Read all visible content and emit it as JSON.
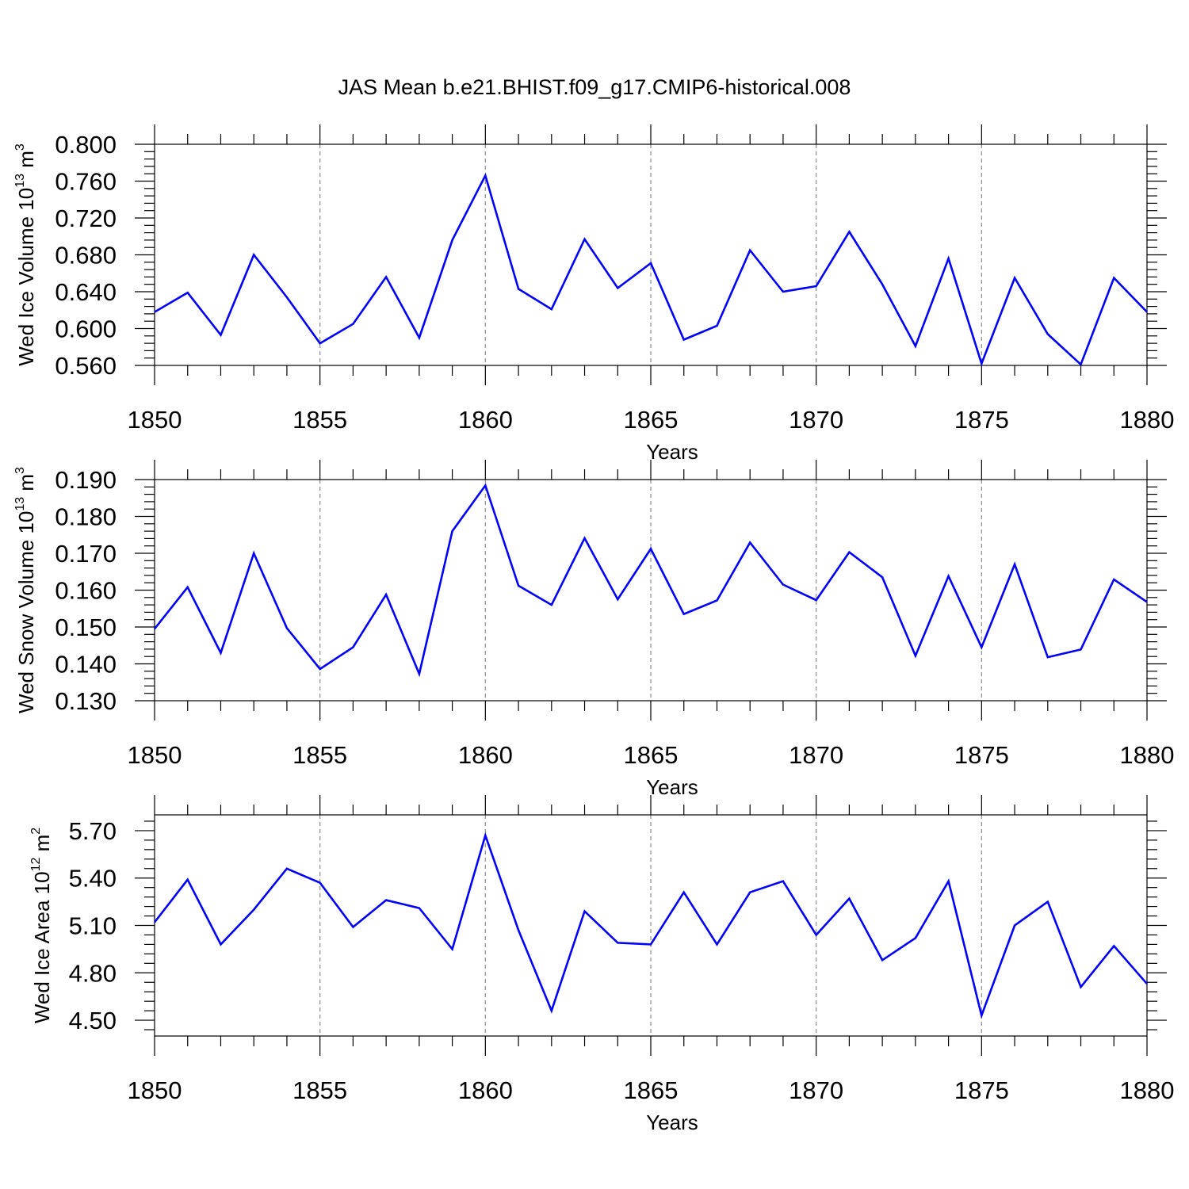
{
  "title": "JAS Mean b.e21.BHIST.f09_g17.CMIP6-historical.008",
  "colors": {
    "line": "#0000ff",
    "axis": "#000000",
    "grid": "#8c8c8c"
  },
  "chart_data": [
    {
      "type": "line",
      "ylabel": {
        "text": "Wed Ice Volume 10",
        "exp": "13",
        "unit": "m",
        "unit_exp": "3"
      },
      "xlabel": "Years",
      "xlim": [
        1850,
        1880
      ],
      "ylim": [
        0.56,
        0.8
      ],
      "x_major_ticks": [
        1850,
        1855,
        1860,
        1865,
        1870,
        1875,
        1880
      ],
      "y_major_ticks": [
        "0.560",
        "0.600",
        "0.640",
        "0.680",
        "0.720",
        "0.760",
        "0.800"
      ],
      "x": [
        1850,
        1851,
        1852,
        1853,
        1854,
        1855,
        1856,
        1857,
        1858,
        1859,
        1860,
        1861,
        1862,
        1863,
        1864,
        1865,
        1866,
        1867,
        1868,
        1869,
        1870,
        1871,
        1872,
        1873,
        1874,
        1875,
        1876,
        1877,
        1878,
        1879,
        1880
      ],
      "series": [
        {
          "values": [
            0.618,
            0.639,
            0.593,
            0.68,
            0.634,
            0.584,
            0.605,
            0.656,
            0.59,
            0.696,
            0.766,
            0.643,
            0.621,
            0.697,
            0.644,
            0.671,
            0.588,
            0.603,
            0.685,
            0.64,
            0.646,
            0.705,
            0.648,
            0.581,
            0.676,
            0.562,
            0.655,
            0.594,
            0.561,
            0.655,
            0.618
          ]
        }
      ]
    },
    {
      "type": "line",
      "ylabel": {
        "text": "Wed Snow Volume 10",
        "exp": "13",
        "unit": "m",
        "unit_exp": "3"
      },
      "xlabel": "Years",
      "xlim": [
        1850,
        1880
      ],
      "ylim": [
        0.13,
        0.19
      ],
      "x_major_ticks": [
        1850,
        1855,
        1860,
        1865,
        1870,
        1875,
        1880
      ],
      "y_major_ticks": [
        "0.130",
        "0.140",
        "0.150",
        "0.160",
        "0.170",
        "0.180",
        "0.190"
      ],
      "x": [
        1850,
        1851,
        1852,
        1853,
        1854,
        1855,
        1856,
        1857,
        1858,
        1859,
        1860,
        1861,
        1862,
        1863,
        1864,
        1865,
        1866,
        1867,
        1868,
        1869,
        1870,
        1871,
        1872,
        1873,
        1874,
        1875,
        1876,
        1877,
        1878,
        1879,
        1880
      ],
      "series": [
        {
          "values": [
            0.1495,
            0.1608,
            0.143,
            0.17,
            0.1497,
            0.1386,
            0.1445,
            0.1588,
            0.1373,
            0.176,
            0.1884,
            0.1612,
            0.156,
            0.1741,
            0.1575,
            0.1712,
            0.1535,
            0.1572,
            0.1729,
            0.1615,
            0.1573,
            0.1703,
            0.1635,
            0.1422,
            0.1638,
            0.1445,
            0.167,
            0.1418,
            0.1439,
            0.1629,
            0.1568
          ]
        }
      ]
    },
    {
      "type": "line",
      "ylabel": {
        "text": "Wed Ice Area 10",
        "exp": "12",
        "unit": "m",
        "unit_exp": "2"
      },
      "xlabel": "Years",
      "xlim": [
        1850,
        1880
      ],
      "ylim": [
        4.4,
        5.8
      ],
      "x_major_ticks": [
        1850,
        1855,
        1860,
        1865,
        1870,
        1875,
        1880
      ],
      "y_major_ticks": [
        "4.50",
        "4.80",
        "5.10",
        "5.40",
        "5.70"
      ],
      "x": [
        1850,
        1851,
        1852,
        1853,
        1854,
        1855,
        1856,
        1857,
        1858,
        1859,
        1860,
        1861,
        1862,
        1863,
        1864,
        1865,
        1866,
        1867,
        1868,
        1869,
        1870,
        1871,
        1872,
        1873,
        1874,
        1875,
        1876,
        1877,
        1878,
        1879,
        1880
      ],
      "series": [
        {
          "values": [
            5.12,
            5.39,
            4.98,
            5.2,
            5.46,
            5.37,
            5.09,
            5.26,
            5.21,
            4.95,
            5.67,
            5.07,
            4.56,
            5.19,
            4.99,
            4.98,
            5.31,
            4.98,
            5.31,
            5.38,
            5.04,
            5.27,
            4.88,
            5.02,
            5.38,
            4.53,
            5.1,
            5.25,
            4.71,
            4.97,
            4.73
          ]
        }
      ]
    }
  ]
}
